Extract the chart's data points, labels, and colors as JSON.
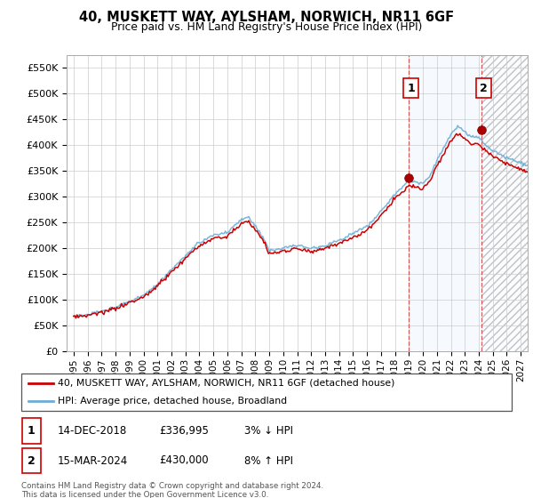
{
  "title": "40, MUSKETT WAY, AYLSHAM, NORWICH, NR11 6GF",
  "subtitle": "Price paid vs. HM Land Registry's House Price Index (HPI)",
  "ylim": [
    0,
    575000
  ],
  "yticks": [
    0,
    50000,
    100000,
    150000,
    200000,
    250000,
    300000,
    350000,
    400000,
    450000,
    500000,
    550000
  ],
  "ytick_labels": [
    "£0",
    "£50K",
    "£100K",
    "£150K",
    "£200K",
    "£250K",
    "£300K",
    "£350K",
    "£400K",
    "£450K",
    "£500K",
    "£550K"
  ],
  "legend_line1": "40, MUSKETT WAY, AYLSHAM, NORWICH, NR11 6GF (detached house)",
  "legend_line2": "HPI: Average price, detached house, Broadland",
  "annotation1_label": "1",
  "annotation1_date": "14-DEC-2018",
  "annotation1_price": "£336,995",
  "annotation1_hpi": "3% ↓ HPI",
  "annotation2_label": "2",
  "annotation2_date": "15-MAR-2024",
  "annotation2_price": "£430,000",
  "annotation2_hpi": "8% ↑ HPI",
  "footnote": "Contains HM Land Registry data © Crown copyright and database right 2024.\nThis data is licensed under the Open Government Licence v3.0.",
  "hpi_color": "#6baed6",
  "price_color": "#cc0000",
  "marker_color": "#aa0000",
  "shade_color": "#ddeeff",
  "xtick_years": [
    1995,
    1996,
    1997,
    1998,
    1999,
    2000,
    2001,
    2002,
    2003,
    2004,
    2005,
    2006,
    2007,
    2008,
    2009,
    2010,
    2011,
    2012,
    2013,
    2014,
    2015,
    2016,
    2017,
    2018,
    2019,
    2020,
    2021,
    2022,
    2023,
    2024,
    2025,
    2026,
    2027
  ],
  "sale1_x": 2019.0,
  "sale1_y": 336995,
  "sale2_x": 2024.21,
  "sale2_y": 430000,
  "xmin": 1994.5,
  "xmax": 2027.5
}
